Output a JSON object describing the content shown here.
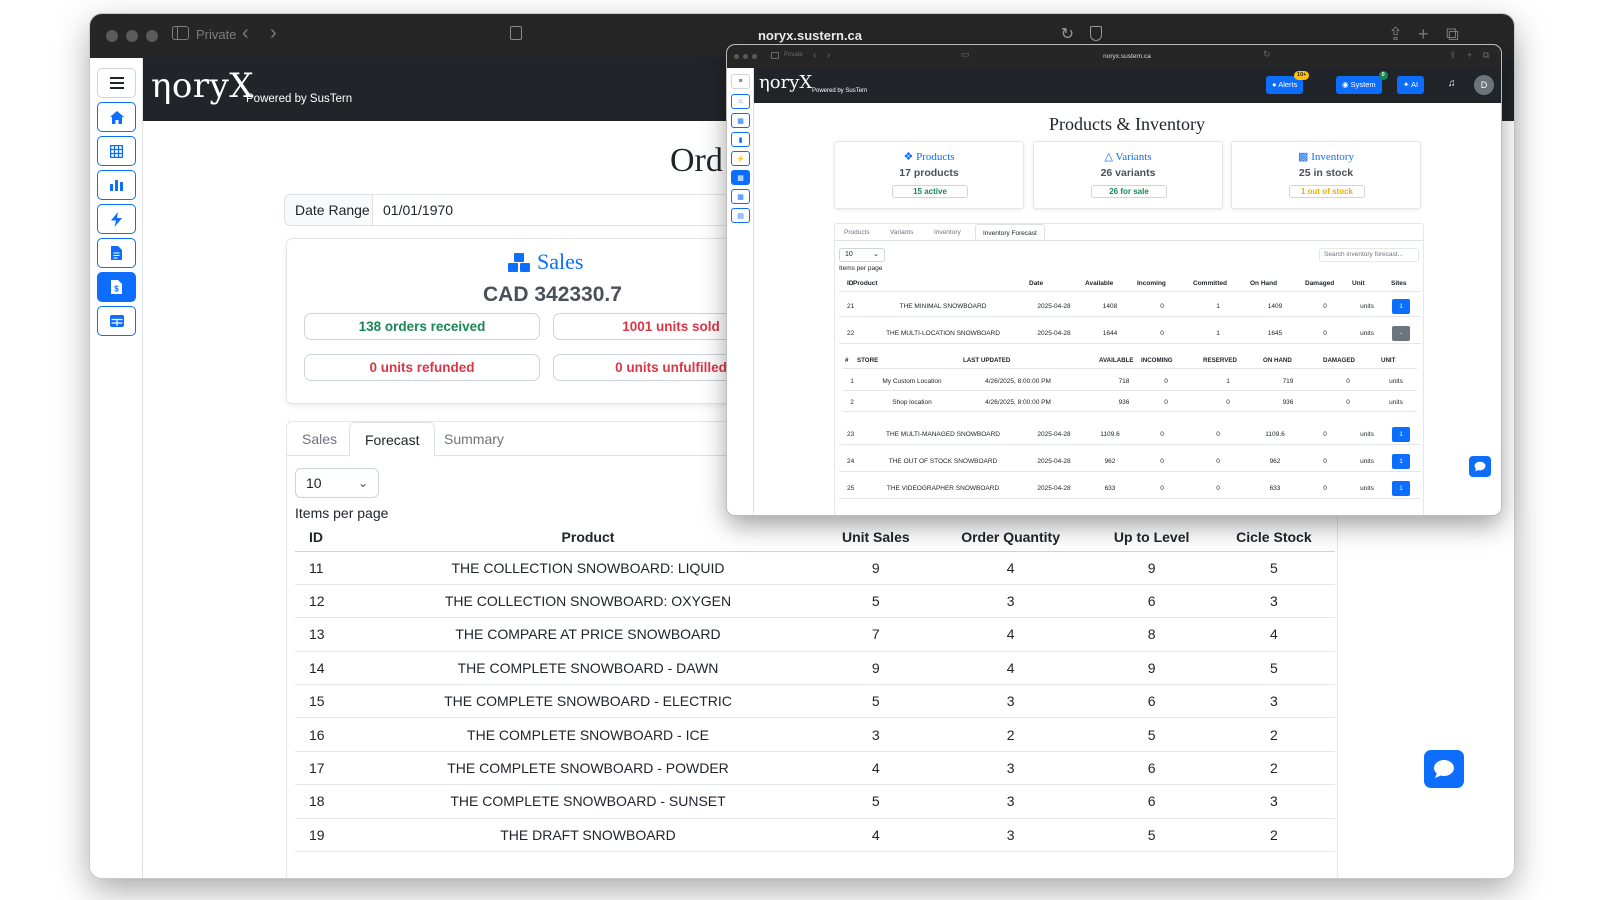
{
  "browser": {
    "private_label": "Private",
    "url": "noryx.sustern.ca"
  },
  "app": {
    "logo": "ηoryX",
    "powered_by": "Powered by SusTern"
  },
  "sidebar": {
    "icons": [
      "menu-icon",
      "home-icon",
      "grid-icon",
      "bar-chart-icon",
      "bolt-icon",
      "document-icon",
      "document-dollar-icon",
      "table-icon"
    ],
    "active_index": 6
  },
  "main": {
    "title": "Ord",
    "date_range": {
      "label": "Date Range",
      "value": "01/01/1970"
    },
    "sales_card": {
      "title": "Sales",
      "amount": "CAD 342330.7",
      "orders_received": "138 orders received",
      "units_sold": "1001 units sold",
      "units_refunded": "0 units refunded",
      "units_unfulfilled": "0 units unfulfilled"
    },
    "tabs": [
      "Sales",
      "Forecast",
      "Summary"
    ],
    "active_tab": "Forecast",
    "items_per_page": {
      "value": "10",
      "label": "Items per page"
    },
    "table": {
      "columns": [
        "ID",
        "Product",
        "Unit Sales",
        "Order Quantity",
        "Up to Level",
        "Cicle Stock"
      ],
      "rows": [
        [
          "11",
          "THE COLLECTION SNOWBOARD: LIQUID",
          "9",
          "4",
          "9",
          "5"
        ],
        [
          "12",
          "THE COLLECTION SNOWBOARD: OXYGEN",
          "5",
          "3",
          "6",
          "3"
        ],
        [
          "13",
          "THE COMPARE AT PRICE SNOWBOARD",
          "7",
          "4",
          "8",
          "4"
        ],
        [
          "14",
          "THE COMPLETE SNOWBOARD - DAWN",
          "9",
          "4",
          "9",
          "5"
        ],
        [
          "15",
          "THE COMPLETE SNOWBOARD - ELECTRIC",
          "5",
          "3",
          "6",
          "3"
        ],
        [
          "16",
          "THE COMPLETE SNOWBOARD - ICE",
          "3",
          "2",
          "5",
          "2"
        ],
        [
          "17",
          "THE COMPLETE SNOWBOARD - POWDER",
          "4",
          "3",
          "6",
          "2"
        ],
        [
          "18",
          "THE COMPLETE SNOWBOARD - SUNSET",
          "5",
          "3",
          "6",
          "3"
        ],
        [
          "19",
          "THE DRAFT SNOWBOARD",
          "4",
          "3",
          "5",
          "2"
        ]
      ]
    }
  },
  "overlay": {
    "url": "noryx.sustern.ca",
    "private_label": "Private",
    "header": {
      "alerts_label": "Alerts",
      "alerts_badge": "10+",
      "system_label": "System",
      "system_badge": "0",
      "ai_label": "AI",
      "avatar": "D"
    },
    "title": "Products & Inventory",
    "cards": [
      {
        "title": "Products",
        "count": "17 products",
        "pill": "15 active",
        "pill_color": "#198754"
      },
      {
        "title": "Variants",
        "count": "26 variants",
        "pill": "26 for sale",
        "pill_color": "#198754"
      },
      {
        "title": "Inventory",
        "count": "25 in stock",
        "pill": "1 out of stock",
        "pill_color": "#f0ad00"
      }
    ],
    "tabs": [
      "Products",
      "Variants",
      "Inventory",
      "Inventory Forecast"
    ],
    "active_tab": "Inventory Forecast",
    "items_per_page": {
      "value": "10",
      "label": "Items per page"
    },
    "search_placeholder": "Search inventory forecast...",
    "columns": [
      "ID",
      "Product",
      "Date",
      "Available",
      "Incoming",
      "Committed",
      "On Hand",
      "Damaged",
      "Unit",
      "Sites"
    ],
    "rows_top": [
      [
        "21",
        "THE MINIMAL SNOWBOARD",
        "2025-04-28",
        "1408",
        "0",
        "1",
        "1409",
        "0",
        "units",
        "1"
      ],
      [
        "22",
        "THE MULTI-LOCATION SNOWBOARD",
        "2025-04-28",
        "1644",
        "0",
        "1",
        "1645",
        "0",
        "units",
        "-"
      ]
    ],
    "sub_columns": [
      "#",
      "STORE",
      "LAST UPDATED",
      "AVAILABLE",
      "INCOMING",
      "RESERVED",
      "ON HAND",
      "DAMAGED",
      "UNIT"
    ],
    "sub_rows": [
      [
        "1",
        "My Custom Location",
        "4/26/2025, 8:00:00 PM",
        "718",
        "0",
        "1",
        "719",
        "0",
        "units"
      ],
      [
        "2",
        "Shop location",
        "4/26/2025, 8:00:00 PM",
        "936",
        "0",
        "0",
        "936",
        "0",
        "units"
      ]
    ],
    "rows_bottom": [
      [
        "23",
        "THE MULTI-MANAGED SNOWBOARD",
        "2025-04-28",
        "1109.6",
        "0",
        "0",
        "1109.6",
        "0",
        "units",
        "1"
      ],
      [
        "24",
        "THE OUT OF STOCK SNOWBOARD",
        "2025-04-28",
        "962",
        "0",
        "0",
        "962",
        "0",
        "units",
        "1"
      ],
      [
        "25",
        "THE VIDEOGRAPHER SNOWBOARD",
        "2025-04-28",
        "633",
        "0",
        "0",
        "633",
        "0",
        "units",
        "1"
      ]
    ]
  },
  "colors": {
    "primary": "#0d6efd",
    "success": "#198754",
    "danger": "#dc3545",
    "warning": "#f0ad00",
    "dark_header": "#212529"
  }
}
